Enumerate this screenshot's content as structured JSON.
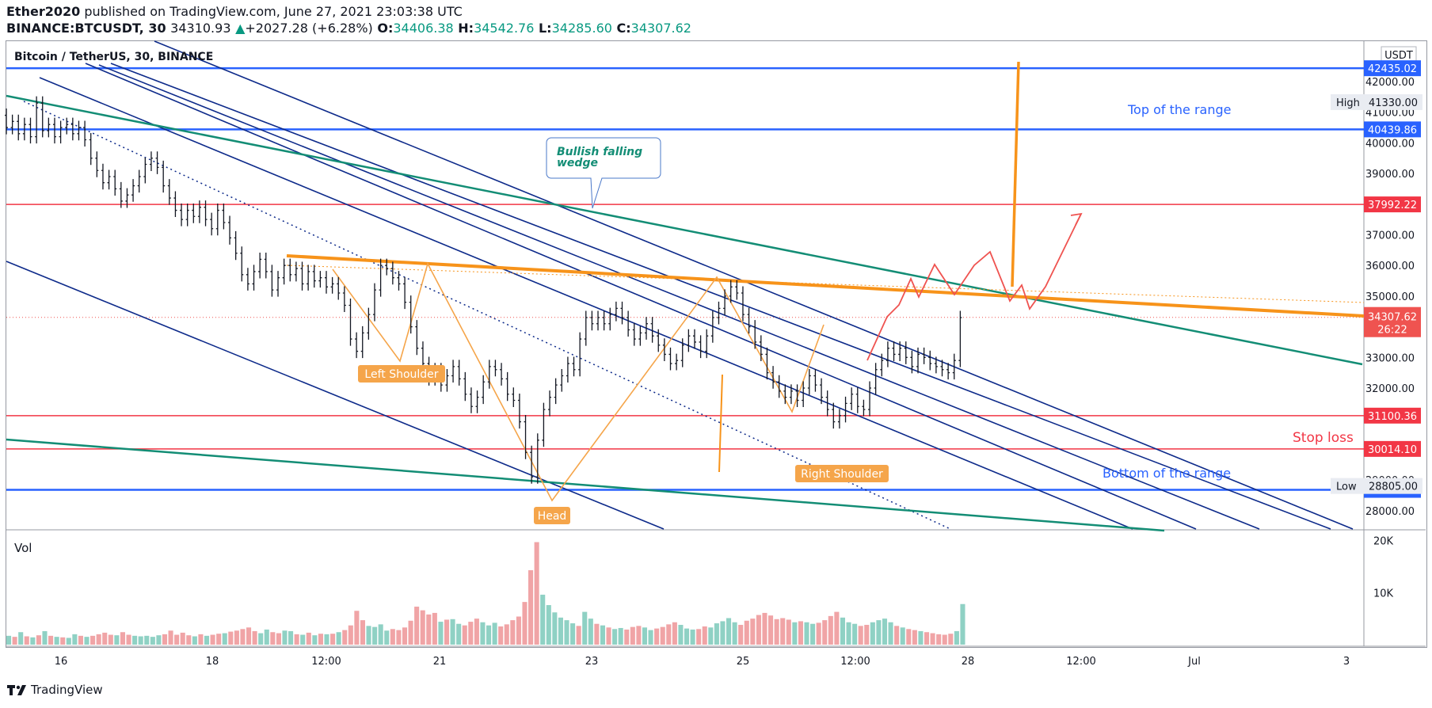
{
  "header": {
    "author": "Ether2020",
    "published": "published on TradingView.com, June 27, 2021 23:03:38 UTC",
    "symbol": "BINANCE:BTCUSDT, 30",
    "last": "34310.93",
    "arrow": "▲",
    "change": "+2027.28 (+6.28%)",
    "o_label": "O:",
    "o": "34406.38",
    "h_label": "H:",
    "h": "34542.76",
    "l_label": "L:",
    "l": "34285.60",
    "c_label": "C:",
    "c": "34307.62"
  },
  "legend": {
    "title": "Bitcoin / TetherUS, 30, BINANCE"
  },
  "footer": {
    "brand": "TradingView"
  },
  "colors": {
    "up": "#089981",
    "bar": "#131722",
    "blue_level": "#2962ff",
    "red_level": "#f23645",
    "orange": "#f7931a",
    "orange_light": "#f5a54a",
    "teal": "#138d75",
    "navy": "#0d2a8a",
    "red_path": "#ef5350"
  },
  "chart_data": {
    "type": "line",
    "title": "Bitcoin / TetherUS, 30, BINANCE",
    "currency_label": "USDT",
    "y_ticks": [
      28000,
      29000,
      30000,
      31000,
      32000,
      33000,
      34000,
      35000,
      36000,
      37000,
      38000,
      39000,
      40000,
      41000,
      42000
    ],
    "x_ticks": [
      "16",
      "18",
      "12:00",
      "21",
      "23",
      "25",
      "12:00",
      "28",
      "12:00",
      "Jul",
      "3"
    ],
    "ylim": [
      27550,
      43500
    ],
    "current_price": {
      "value": "34307.62",
      "countdown": "26:22"
    },
    "high": {
      "label": "High",
      "value": "41330.00"
    },
    "low": {
      "label": "Low",
      "value": "28805.00"
    },
    "levels": [
      {
        "value": 42435.02,
        "label": "42435.02",
        "kind": "blue"
      },
      {
        "value": 40439.86,
        "label": "40439.86",
        "kind": "blue"
      },
      {
        "value": 37992.22,
        "label": "37992.22",
        "kind": "red"
      },
      {
        "value": 31100.36,
        "label": "31100.36",
        "kind": "red"
      },
      {
        "value": 30014.1,
        "label": "30014.10",
        "kind": "red"
      },
      {
        "value": 28678.35,
        "label": "28678.35",
        "kind": "blue"
      }
    ],
    "annotations": {
      "wedge": [
        "Bullish falling",
        "wedge"
      ],
      "top_range": "Top of the range",
      "bottom_range": "Bottom of the range",
      "stop_loss": "Stop loss",
      "left_shoulder": "Left Shoulder",
      "head": "Head",
      "right_shoulder": "Right Shoulder"
    },
    "price_path": [
      40900,
      40500,
      40700,
      40300,
      40600,
      40200,
      41300,
      40400,
      40600,
      40200,
      40500,
      40600,
      40300,
      40500,
      40100,
      39500,
      39100,
      38700,
      38900,
      38500,
      38100,
      38300,
      38600,
      38900,
      39300,
      39500,
      39200,
      38600,
      38200,
      37800,
      37500,
      37800,
      37600,
      37900,
      37500,
      37200,
      37800,
      37400,
      36900,
      36400,
      35700,
      35400,
      35800,
      36200,
      35800,
      35200,
      35600,
      36000,
      35700,
      35900,
      35400,
      35800,
      35500,
      35600,
      35300,
      35400,
      35100,
      34700,
      33600,
      33200,
      33800,
      34400,
      35200,
      36000,
      35900,
      35600,
      35400,
      34800,
      34000,
      33300,
      32800,
      32300,
      32600,
      32100,
      32400,
      32700,
      32300,
      31800,
      31400,
      31700,
      32200,
      32700,
      32600,
      32300,
      31800,
      31600,
      30900,
      29900,
      29100,
      30300,
      31300,
      31700,
      32100,
      32400,
      32800,
      32600,
      33600,
      34300,
      34100,
      34300,
      34100,
      34400,
      34600,
      34300,
      33900,
      33600,
      33800,
      34100,
      33700,
      33400,
      33100,
      32800,
      32900,
      33400,
      33700,
      33500,
      33200,
      33700,
      34300,
      34600,
      35000,
      35300,
      35100,
      34400,
      34000,
      33500,
      33100,
      32500,
      32200,
      31900,
      31700,
      31900,
      31600,
      32000,
      32400,
      32100,
      31700,
      31300,
      30900,
      31100,
      31500,
      31800,
      31400,
      31300,
      32000,
      32600,
      32900,
      33300,
      33100,
      33300,
      33000,
      32700,
      33100,
      33000,
      32800,
      32700,
      32600,
      32500,
      32900,
      34300
    ],
    "volume": {
      "label": "Vol",
      "ticks": [
        {
          "value": 10000,
          "label": "10K"
        },
        {
          "value": 20000,
          "label": "20K"
        }
      ],
      "ylim": [
        0,
        21000
      ],
      "values": [
        1700,
        1500,
        2400,
        1600,
        1400,
        1800,
        2600,
        1700,
        1500,
        1400,
        1300,
        2000,
        1700,
        1500,
        1700,
        2000,
        2300,
        1900,
        1800,
        2400,
        1900,
        1700,
        1600,
        1700,
        1500,
        1800,
        2000,
        2700,
        1900,
        2300,
        1800,
        1600,
        2000,
        1700,
        1900,
        2100,
        2200,
        2500,
        2700,
        3000,
        3300,
        2600,
        2200,
        2900,
        2400,
        2200,
        2700,
        2600,
        2000,
        1900,
        2300,
        1800,
        2100,
        2000,
        2100,
        2400,
        2800,
        3700,
        6500,
        4700,
        3600,
        3400,
        3900,
        2700,
        3000,
        2800,
        3300,
        4600,
        7300,
        6600,
        5800,
        6100,
        4400,
        4800,
        4900,
        4000,
        3700,
        4400,
        5000,
        4300,
        3700,
        4200,
        3500,
        3900,
        4700,
        5400,
        8200,
        14300,
        19700,
        9600,
        7600,
        6200,
        5200,
        4700,
        4100,
        3600,
        6300,
        5000,
        4000,
        3700,
        3300,
        3000,
        3200,
        2900,
        3400,
        3600,
        3300,
        2800,
        3100,
        3400,
        3900,
        4300,
        3800,
        3100,
        2900,
        3000,
        3500,
        3300,
        4100,
        4500,
        5100,
        4300,
        3800,
        4600,
        5000,
        5700,
        6100,
        5600,
        4900,
        5100,
        4800,
        4300,
        4500,
        4300,
        4000,
        4200,
        4700,
        5500,
        6300,
        5200,
        4300,
        4000,
        3600,
        3800,
        4300,
        4700,
        5000,
        4300,
        3600,
        3300,
        3000,
        2800,
        2600,
        2400,
        2200,
        2000,
        1900,
        2100,
        2600,
        7800
      ]
    }
  }
}
